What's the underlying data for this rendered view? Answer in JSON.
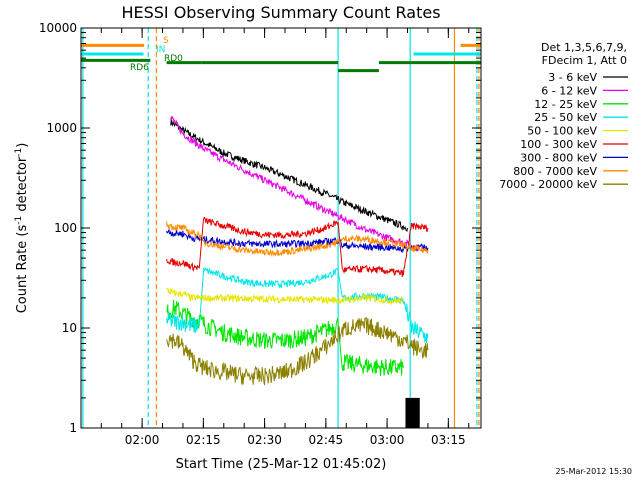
{
  "chart_data": {
    "type": "line",
    "title": "HESSI Observing Summary Count Rates",
    "xlabel": "Start Time (25-Mar-12 01:45:02)",
    "ylabel_main": "Count Rate (s",
    "ylabel_sup1": "-1",
    "ylabel_mid": " detector",
    "ylabel_sup2": "-1",
    "ylabel_end": ")",
    "yscale": "log",
    "ylim": [
      1,
      10000
    ],
    "xlim": [
      "01:45:02",
      "03:23:00"
    ],
    "x_ticks": [
      {
        "t": "02:00",
        "label": "02:00"
      },
      {
        "t": "02:15",
        "label": "02:15"
      },
      {
        "t": "02:30",
        "label": "02:30"
      },
      {
        "t": "02:45",
        "label": "02:45"
      },
      {
        "t": "03:00",
        "label": "03:00"
      },
      {
        "t": "03:15",
        "label": "03:15"
      }
    ],
    "y_ticks": [
      {
        "v": 1,
        "label": "1"
      },
      {
        "v": 10,
        "label": "10"
      },
      {
        "v": 100,
        "label": "100"
      },
      {
        "v": 1000,
        "label": "1000"
      },
      {
        "v": 10000,
        "label": "10000"
      }
    ],
    "legend_header": [
      "Det 1,3,5,6,7,9,",
      "FDecim 1, Att 0"
    ],
    "legend_position": "right",
    "series": [
      {
        "name": "3 - 6 keV",
        "color": "#000000",
        "points": [
          [
            "02:07",
            1150
          ],
          [
            "02:10",
            950
          ],
          [
            "02:15",
            720
          ],
          [
            "02:20",
            560
          ],
          [
            "02:25",
            470
          ],
          [
            "02:30",
            400
          ],
          [
            "02:35",
            330
          ],
          [
            "02:40",
            270
          ],
          [
            "02:45",
            220
          ],
          [
            "02:50",
            175
          ],
          [
            "02:55",
            145
          ],
          [
            "03:00",
            120
          ],
          [
            "03:05",
            100
          ]
        ]
      },
      {
        "name": "6 - 12 keV",
        "color": "#e600e6",
        "points": [
          [
            "02:07",
            1300
          ],
          [
            "02:10",
            880
          ],
          [
            "02:15",
            620
          ],
          [
            "02:20",
            480
          ],
          [
            "02:25",
            380
          ],
          [
            "02:30",
            300
          ],
          [
            "02:35",
            240
          ],
          [
            "02:40",
            190
          ],
          [
            "02:45",
            150
          ],
          [
            "02:50",
            120
          ],
          [
            "02:55",
            95
          ],
          [
            "03:00",
            80
          ],
          [
            "03:04",
            72
          ],
          [
            "03:08",
            62
          ]
        ]
      },
      {
        "name": "12 - 25 keV",
        "color": "#00e600",
        "points": [
          [
            "02:06",
            14
          ],
          [
            "02:08",
            16
          ],
          [
            "02:10",
            14
          ],
          [
            "02:12",
            12.5
          ],
          [
            "02:14",
            12
          ],
          [
            "02:15",
            11
          ],
          [
            "02:20",
            9
          ],
          [
            "02:25",
            8
          ],
          [
            "02:30",
            7.5
          ],
          [
            "02:35",
            7.5
          ],
          [
            "02:40",
            8
          ],
          [
            "02:45",
            9.5
          ],
          [
            "02:48",
            11
          ],
          [
            "02:49",
            4.5
          ],
          [
            "02:55",
            4.2
          ],
          [
            "03:00",
            4
          ],
          [
            "03:04",
            4
          ]
        ]
      },
      {
        "name": "25 - 50 keV",
        "color": "#00e6e6",
        "points": [
          [
            "02:06",
            12
          ],
          [
            "02:08",
            11.5
          ],
          [
            "02:10",
            11.5
          ],
          [
            "02:12",
            10.5
          ],
          [
            "02:14",
            10.5
          ],
          [
            "02:15",
            38
          ],
          [
            "02:20",
            33
          ],
          [
            "02:25",
            29
          ],
          [
            "02:30",
            27.5
          ],
          [
            "02:35",
            27.5
          ],
          [
            "02:40",
            29
          ],
          [
            "02:45",
            33
          ],
          [
            "02:48",
            37
          ],
          [
            "02:49",
            20
          ],
          [
            "02:55",
            21
          ],
          [
            "03:00",
            20
          ],
          [
            "03:04",
            19
          ],
          [
            "03:06",
            10
          ],
          [
            "03:10",
            8
          ]
        ]
      },
      {
        "name": "50 - 100 keV",
        "color": "#e6e600",
        "points": [
          [
            "02:06",
            24
          ],
          [
            "02:08",
            22
          ],
          [
            "02:10",
            22
          ],
          [
            "02:12",
            20
          ],
          [
            "02:14",
            20
          ],
          [
            "02:49",
            19
          ],
          [
            "02:55",
            20
          ],
          [
            "03:00",
            19
          ],
          [
            "03:04",
            18.5
          ]
        ]
      },
      {
        "name": "100 - 300 keV",
        "color": "#e60000",
        "points": [
          [
            "02:06",
            48
          ],
          [
            "02:08",
            45
          ],
          [
            "02:10",
            45
          ],
          [
            "02:12",
            41
          ],
          [
            "02:14",
            40
          ],
          [
            "02:15",
            120
          ],
          [
            "02:20",
            105
          ],
          [
            "02:25",
            92
          ],
          [
            "02:30",
            86
          ],
          [
            "02:35",
            85
          ],
          [
            "02:40",
            88
          ],
          [
            "02:45",
            100
          ],
          [
            "02:48",
            115
          ],
          [
            "02:49",
            38
          ],
          [
            "02:55",
            39
          ],
          [
            "03:00",
            37
          ],
          [
            "03:04",
            35
          ],
          [
            "03:06",
            105
          ],
          [
            "03:10",
            100
          ]
        ]
      },
      {
        "name": "300 - 800 keV",
        "color": "#0000cc",
        "points": [
          [
            "02:06",
            92
          ],
          [
            "02:08",
            88
          ],
          [
            "02:10",
            88
          ],
          [
            "02:12",
            80
          ],
          [
            "02:14",
            78
          ],
          [
            "02:15",
            77
          ],
          [
            "02:20",
            73
          ],
          [
            "02:25",
            70
          ],
          [
            "02:30",
            69
          ],
          [
            "02:35",
            69
          ],
          [
            "02:40",
            70
          ],
          [
            "02:45",
            73
          ],
          [
            "02:48",
            76
          ],
          [
            "02:49",
            67
          ],
          [
            "02:55",
            65
          ],
          [
            "03:00",
            64
          ],
          [
            "03:04",
            62
          ],
          [
            "03:06",
            65
          ],
          [
            "03:10",
            63
          ]
        ]
      },
      {
        "name": "800 - 7000 keV",
        "color": "#ff8c00",
        "points": [
          [
            "02:06",
            108
          ],
          [
            "02:08",
            102
          ],
          [
            "02:10",
            100
          ],
          [
            "02:12",
            90
          ],
          [
            "02:14",
            86
          ],
          [
            "02:15",
            72
          ],
          [
            "02:20",
            65
          ],
          [
            "02:25",
            60
          ],
          [
            "02:30",
            57
          ],
          [
            "02:35",
            58
          ],
          [
            "02:40",
            61
          ],
          [
            "02:45",
            67
          ],
          [
            "02:48",
            72
          ],
          [
            "02:50",
            79
          ],
          [
            "02:55",
            77
          ],
          [
            "03:00",
            72
          ],
          [
            "03:04",
            67
          ],
          [
            "03:06",
            62
          ],
          [
            "03:10",
            60
          ]
        ]
      },
      {
        "name": "7000 - 20000 keV",
        "color": "#8b8000",
        "points": [
          [
            "02:06",
            8
          ],
          [
            "02:08",
            7.5
          ],
          [
            "02:10",
            6.5
          ],
          [
            "02:12",
            5
          ],
          [
            "02:14",
            4.2
          ],
          [
            "02:15",
            4
          ],
          [
            "02:20",
            3.6
          ],
          [
            "02:25",
            3.3
          ],
          [
            "02:30",
            3.3
          ],
          [
            "02:35",
            3.6
          ],
          [
            "02:40",
            4.5
          ],
          [
            "02:45",
            6.5
          ],
          [
            "02:48",
            8.5
          ],
          [
            "02:50",
            10
          ],
          [
            "02:55",
            10.5
          ],
          [
            "03:00",
            9
          ],
          [
            "03:04",
            7.5
          ],
          [
            "03:08",
            6
          ],
          [
            "03:10",
            6
          ]
        ]
      }
    ],
    "state_bars": [
      {
        "label": "S",
        "color": "#ff8c00",
        "y": 6700,
        "segments": [
          [
            "01:45:02",
            "02:00:30"
          ],
          [
            "03:18",
            "03:23"
          ]
        ]
      },
      {
        "label": "IN",
        "color": "#00e6e6",
        "y": 5500,
        "segments": [
          [
            "01:45:02",
            "02:00:20"
          ],
          [
            "03:06:30",
            "03:23"
          ]
        ]
      },
      {
        "label": "RD0",
        "color": "#007a00",
        "y": 4500,
        "segments": [
          [
            "02:06",
            "02:14:30"
          ],
          [
            "02:14:30",
            "02:48"
          ],
          [
            "02:48",
            "02:58"
          ],
          [
            "02:58",
            "03:06"
          ],
          [
            "03:06",
            "03:23"
          ]
        ]
      },
      {
        "label": "RD6",
        "color": "#007a00",
        "y": 4750,
        "segments": [
          [
            "01:45:02",
            "02:02"
          ]
        ]
      }
    ],
    "vlines": [
      {
        "t": "01:45:30",
        "color": "#00e6e6",
        "dash": false
      },
      {
        "t": "02:01:30",
        "color": "#00e6e6",
        "dash": true
      },
      {
        "t": "02:03:30",
        "color": "#ff8c00",
        "dash": true
      },
      {
        "t": "02:48:00",
        "color": "#00e6e6",
        "dash": false
      },
      {
        "t": "03:05:40",
        "color": "#00e6e6",
        "dash": false
      },
      {
        "t": "03:16:30",
        "color": "#ff8c00",
        "dash": false
      },
      {
        "t": "03:22:00",
        "color": "#00e6e6",
        "dash": true
      },
      {
        "t": "03:22:30",
        "color": "#ff8c00",
        "dash": true
      }
    ],
    "black_block": {
      "from": "03:04:30",
      "to": "03:08:00",
      "ylow": 1,
      "yhigh": 2
    },
    "footer_stamp": "25-Mar-2012 15:30"
  }
}
